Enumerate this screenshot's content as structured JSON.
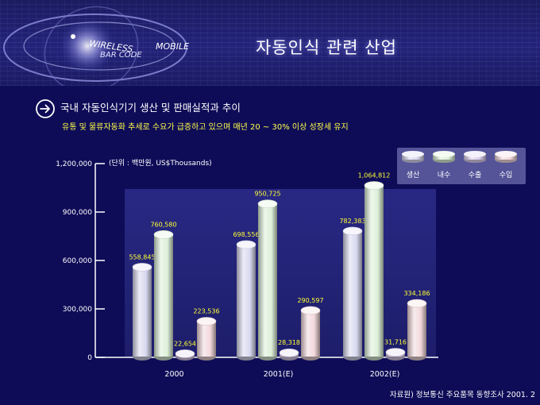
{
  "header": {
    "title": "자동인식 관련 산업",
    "logo_text_1": "WIRELESS",
    "logo_text_2": "MOBILE",
    "logo_text_3": "BAR CODE"
  },
  "content": {
    "heading": "국내 자동인식기기 생산 및 판매실적과 추이",
    "subheading": "유통 및 물류자동화 추세로 수요가 급증하고 있으며 매년 20 ~ 30% 이상 성장세 유지",
    "source": "자료원) 정보통신 주요품목 동향조사 2001. 2"
  },
  "chart_data": {
    "type": "bar",
    "unit_label": "(단위 : 백만원, US$Thousands)",
    "categories": [
      "2000",
      "2001(E)",
      "2002(E)"
    ],
    "series": [
      {
        "name": "생산",
        "values": [
          558845,
          698556,
          782383
        ],
        "value_labels": [
          "558,845",
          "698,556",
          "782,383"
        ],
        "color": "#d8d8f0"
      },
      {
        "name": "내수",
        "values": [
          760580,
          950725,
          1064812
        ],
        "value_labels": [
          "760,580",
          "950,725",
          "1,064,812"
        ],
        "color": "#dcefd8"
      },
      {
        "name": "수출",
        "values": [
          22654,
          28318,
          31716
        ],
        "value_labels": [
          "22,654",
          "28,318",
          "31,716"
        ],
        "color": "#ddd0ee"
      },
      {
        "name": "수입",
        "values": [
          223536,
          290597,
          334186
        ],
        "value_labels": [
          "223,536",
          "290,597",
          "334,186"
        ],
        "color": "#f2d8dc"
      }
    ],
    "yticks": [
      0,
      300000,
      600000,
      900000,
      1200000
    ],
    "ytick_labels": [
      "0",
      "300,000",
      "600,000",
      "900,000",
      "1,200,000"
    ],
    "ylim": [
      0,
      1200000
    ],
    "legend_position": "top-right",
    "grid": false
  }
}
